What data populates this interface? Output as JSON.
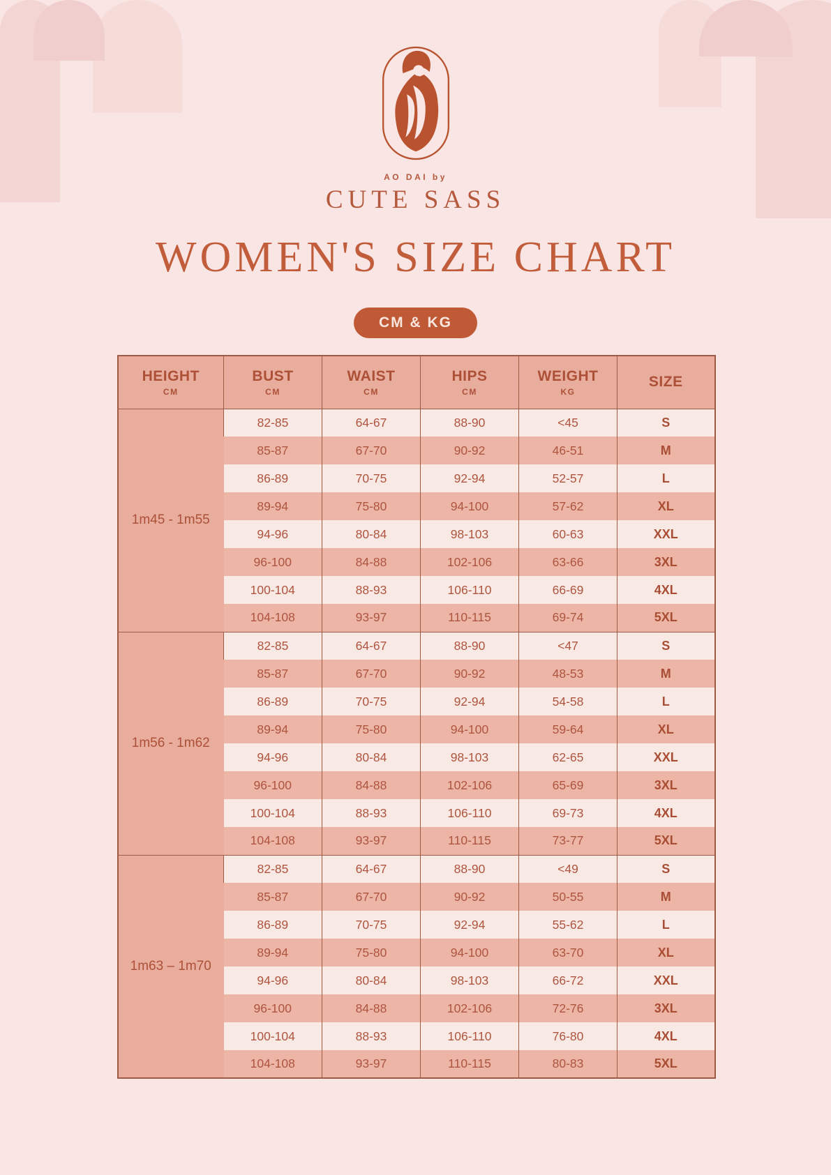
{
  "brand": {
    "tagline": "AO DAI by",
    "name": "CUTE SASS",
    "logo_icon": "woman-in-ao-dai-oval-emblem"
  },
  "page": {
    "title": "WOMEN'S SIZE CHART",
    "unit_badge": "CM & KG"
  },
  "colors": {
    "background": "#f8e5e4",
    "accent_terracotta": "#c05a36",
    "table_header_bg": "#e9ad9d",
    "row_light": "#f9e9e5",
    "row_dark": "#ecb5a6",
    "table_border": "#9d5b44",
    "text_terracotta": "#ae5540"
  },
  "table": {
    "columns": [
      {
        "label": "HEIGHT",
        "unit": "CM"
      },
      {
        "label": "BUST",
        "unit": "CM"
      },
      {
        "label": "WAIST",
        "unit": "CM"
      },
      {
        "label": "HIPS",
        "unit": "CM"
      },
      {
        "label": "WEIGHT",
        "unit": "KG"
      },
      {
        "label": "SIZE",
        "unit": ""
      }
    ],
    "groups": [
      {
        "height": "1m45 - 1m55",
        "rows": [
          {
            "bust": "82-85",
            "waist": "64-67",
            "hips": "88-90",
            "weight": "<45",
            "size": "S"
          },
          {
            "bust": "85-87",
            "waist": "67-70",
            "hips": "90-92",
            "weight": "46-51",
            "size": "M"
          },
          {
            "bust": "86-89",
            "waist": "70-75",
            "hips": "92-94",
            "weight": "52-57",
            "size": "L"
          },
          {
            "bust": "89-94",
            "waist": "75-80",
            "hips": "94-100",
            "weight": "57-62",
            "size": "XL"
          },
          {
            "bust": "94-96",
            "waist": "80-84",
            "hips": "98-103",
            "weight": "60-63",
            "size": "XXL"
          },
          {
            "bust": "96-100",
            "waist": "84-88",
            "hips": "102-106",
            "weight": "63-66",
            "size": "3XL"
          },
          {
            "bust": "100-104",
            "waist": "88-93",
            "hips": "106-110",
            "weight": "66-69",
            "size": "4XL"
          },
          {
            "bust": "104-108",
            "waist": "93-97",
            "hips": "110-115",
            "weight": "69-74",
            "size": "5XL"
          }
        ]
      },
      {
        "height": "1m56 - 1m62",
        "rows": [
          {
            "bust": "82-85",
            "waist": "64-67",
            "hips": "88-90",
            "weight": "<47",
            "size": "S"
          },
          {
            "bust": "85-87",
            "waist": "67-70",
            "hips": "90-92",
            "weight": "48-53",
            "size": "M"
          },
          {
            "bust": "86-89",
            "waist": "70-75",
            "hips": "92-94",
            "weight": "54-58",
            "size": "L"
          },
          {
            "bust": "89-94",
            "waist": "75-80",
            "hips": "94-100",
            "weight": "59-64",
            "size": "XL"
          },
          {
            "bust": "94-96",
            "waist": "80-84",
            "hips": "98-103",
            "weight": "62-65",
            "size": "XXL"
          },
          {
            "bust": "96-100",
            "waist": "84-88",
            "hips": "102-106",
            "weight": "65-69",
            "size": "3XL"
          },
          {
            "bust": "100-104",
            "waist": "88-93",
            "hips": "106-110",
            "weight": "69-73",
            "size": "4XL"
          },
          {
            "bust": "104-108",
            "waist": "93-97",
            "hips": "110-115",
            "weight": "73-77",
            "size": "5XL"
          }
        ]
      },
      {
        "height": "1m63 – 1m70",
        "rows": [
          {
            "bust": "82-85",
            "waist": "64-67",
            "hips": "88-90",
            "weight": "<49",
            "size": "S"
          },
          {
            "bust": "85-87",
            "waist": "67-70",
            "hips": "90-92",
            "weight": "50-55",
            "size": "M"
          },
          {
            "bust": "86-89",
            "waist": "70-75",
            "hips": "92-94",
            "weight": "55-62",
            "size": "L"
          },
          {
            "bust": "89-94",
            "waist": "75-80",
            "hips": "94-100",
            "weight": "63-70",
            "size": "XL"
          },
          {
            "bust": "94-96",
            "waist": "80-84",
            "hips": "98-103",
            "weight": "66-72",
            "size": "XXL"
          },
          {
            "bust": "96-100",
            "waist": "84-88",
            "hips": "102-106",
            "weight": "72-76",
            "size": "3XL"
          },
          {
            "bust": "100-104",
            "waist": "88-93",
            "hips": "106-110",
            "weight": "76-80",
            "size": "4XL"
          },
          {
            "bust": "104-108",
            "waist": "93-97",
            "hips": "110-115",
            "weight": "80-83",
            "size": "5XL"
          }
        ]
      }
    ]
  }
}
